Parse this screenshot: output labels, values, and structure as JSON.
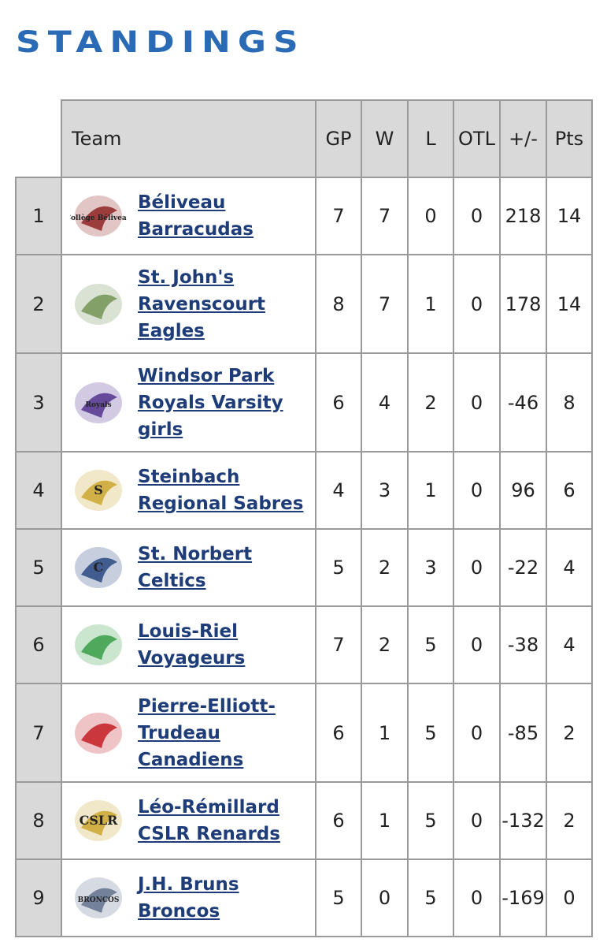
{
  "header": {
    "title": "STANDINGS"
  },
  "table": {
    "columns": [
      "Team",
      "GP",
      "W",
      "L",
      "OTL",
      "+/-",
      "Pts"
    ],
    "rows": [
      {
        "rank": "1",
        "name_lines": [
          "Béliveau",
          "Barracudas"
        ],
        "logo": "Collège Béliveau",
        "stats": [
          "7",
          "7",
          "0",
          "0",
          "218",
          "14"
        ]
      },
      {
        "rank": "2",
        "name_lines": [
          "St. John's",
          "Ravenscourt",
          "Eagles"
        ],
        "stats": [
          "8",
          "7",
          "1",
          "0",
          "178",
          "14"
        ]
      },
      {
        "rank": "3",
        "name_lines": [
          "Windsor Park",
          "Royals Varsity",
          "girls"
        ],
        "logo": "Royals",
        "stats": [
          "6",
          "4",
          "2",
          "0",
          "-46",
          "8"
        ]
      },
      {
        "rank": "4",
        "name_lines": [
          "Steinbach",
          "Regional Sabres"
        ],
        "logo": "S",
        "stats": [
          "4",
          "3",
          "1",
          "0",
          "96",
          "6"
        ]
      },
      {
        "rank": "5",
        "name_lines": [
          "St. Norbert",
          "Celtics"
        ],
        "logo": "C",
        "stats": [
          "5",
          "2",
          "3",
          "0",
          "-22",
          "4"
        ]
      },
      {
        "rank": "6",
        "name_lines": [
          "Louis-Riel",
          "Voyageurs"
        ],
        "stats": [
          "7",
          "2",
          "5",
          "0",
          "-38",
          "4"
        ]
      },
      {
        "rank": "7",
        "name_lines": [
          "Pierre-Elliott-",
          "Trudeau",
          "Canadiens"
        ],
        "stats": [
          "6",
          "1",
          "5",
          "0",
          "-85",
          "2"
        ]
      },
      {
        "rank": "8",
        "name_lines": [
          "Léo-Rémillard",
          "CSLR Renards"
        ],
        "logo": "CSLR",
        "stats": [
          "6",
          "1",
          "5",
          "0",
          "-132",
          "2"
        ]
      },
      {
        "rank": "9",
        "name_lines": [
          "J.H. Bruns",
          "Broncos"
        ],
        "logo": "BRONCOS",
        "stats": [
          "5",
          "0",
          "5",
          "0",
          "-169",
          "0"
        ]
      }
    ]
  }
}
